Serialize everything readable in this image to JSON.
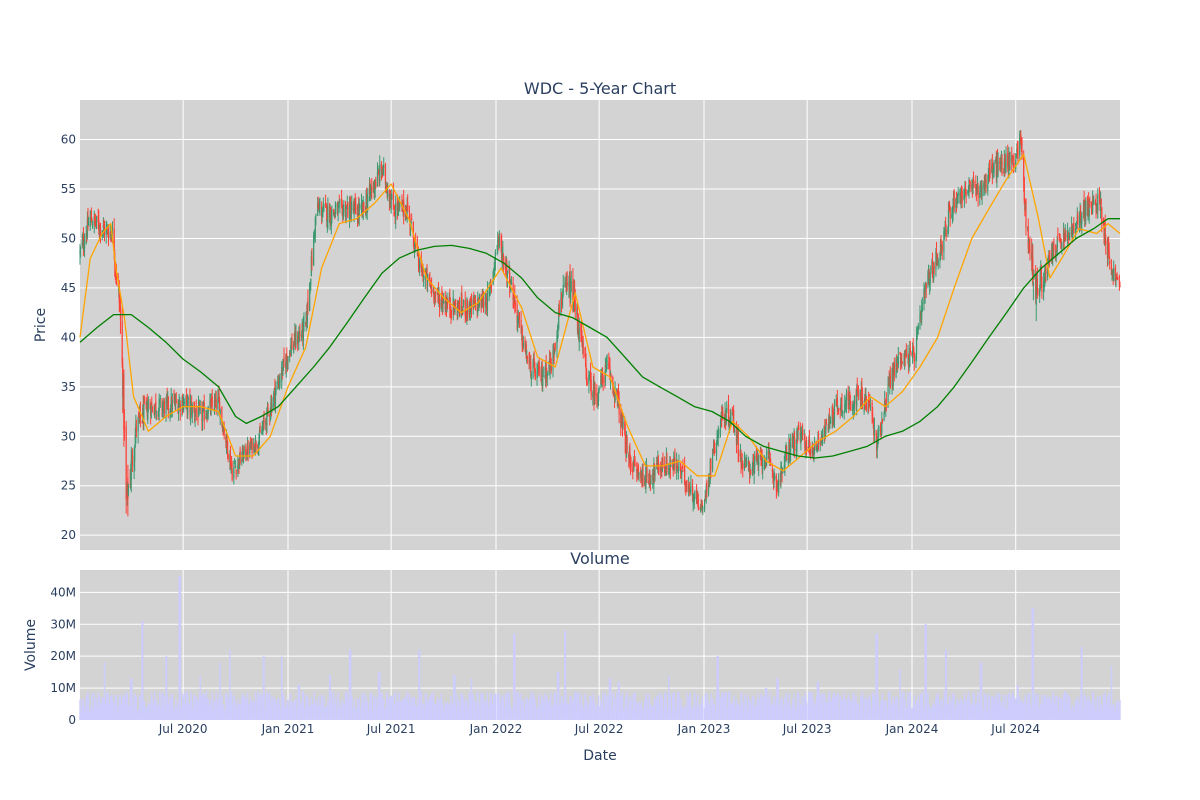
{
  "chart_data": {
    "type": "candlestick",
    "title": "WDC - 5-Year Chart",
    "price_panel": {
      "ylabel": "Price",
      "ylim": [
        18.5,
        64
      ],
      "y_ticks": [
        20,
        25,
        30,
        35,
        40,
        45,
        50,
        55,
        60
      ],
      "grid": true,
      "up_color": "#3d9970",
      "down_color": "#ff4136",
      "ohlc_keypoints": {
        "dates": [
          "2020-01-02",
          "2020-01-20",
          "2020-02-10",
          "2020-02-28",
          "2020-03-12",
          "2020-03-18",
          "2020-03-23",
          "2020-04-10",
          "2020-05-01",
          "2020-06-01",
          "2020-07-01",
          "2020-08-01",
          "2020-09-01",
          "2020-09-25",
          "2020-10-20",
          "2020-11-10",
          "2020-12-01",
          "2021-01-05",
          "2021-02-01",
          "2021-02-20",
          "2021-03-15",
          "2021-04-15",
          "2021-05-10",
          "2021-05-28",
          "2021-06-15",
          "2021-07-05",
          "2021-07-30",
          "2021-08-20",
          "2021-09-20",
          "2021-10-20",
          "2021-11-20",
          "2021-12-20",
          "2022-01-04",
          "2022-01-25",
          "2022-02-15",
          "2022-03-01",
          "2022-03-20",
          "2022-04-10",
          "2022-04-25",
          "2022-05-10",
          "2022-05-20",
          "2022-06-10",
          "2022-06-25",
          "2022-07-15",
          "2022-08-01",
          "2022-08-20",
          "2022-09-10",
          "2022-09-30",
          "2022-10-15",
          "2022-11-15",
          "2022-12-15",
          "2022-12-30",
          "2023-01-15",
          "2023-02-01",
          "2023-02-20",
          "2023-03-10",
          "2023-03-30",
          "2023-04-20",
          "2023-05-10",
          "2023-05-31",
          "2023-06-20",
          "2023-07-10",
          "2023-08-01",
          "2023-08-20",
          "2023-09-10",
          "2023-10-01",
          "2023-10-20",
          "2023-10-31",
          "2023-11-20",
          "2023-12-10",
          "2024-01-05",
          "2024-01-25",
          "2024-02-20",
          "2024-03-15",
          "2024-04-10",
          "2024-05-01",
          "2024-05-20",
          "2024-06-10",
          "2024-06-28",
          "2024-07-10",
          "2024-07-20",
          "2024-08-05",
          "2024-08-20",
          "2024-09-06",
          "2024-09-25",
          "2024-10-15",
          "2024-10-28",
          "2024-11-10",
          "2024-11-25",
          "2024-12-06",
          "2024-12-15",
          "2024-12-24",
          "2024-12-31"
        ],
        "close": [
          48.5,
          52,
          51,
          50.5,
          43,
          34,
          23,
          31,
          33,
          33,
          33.5,
          32,
          33.5,
          26.5,
          28.5,
          29.5,
          33,
          39,
          41,
          53,
          52.5,
          53,
          52.5,
          55,
          57,
          53,
          53,
          47,
          44,
          43,
          43,
          44,
          50,
          46,
          40,
          37,
          36,
          37.5,
          44,
          45,
          43,
          36,
          34,
          37,
          34,
          28,
          26,
          26,
          27,
          27,
          24,
          22.5,
          28,
          32,
          32,
          27,
          27,
          28,
          25,
          29,
          30,
          28.5,
          30.5,
          33,
          33.5,
          34,
          33,
          29,
          35,
          38,
          38,
          45,
          49,
          54,
          55,
          55,
          57,
          57.5,
          58,
          60,
          51,
          45,
          46,
          49,
          50,
          51,
          53,
          53,
          54,
          50,
          47,
          46,
          45
        ],
        "high": [
          51,
          53.5,
          53,
          52,
          46,
          38,
          28,
          34,
          35,
          35,
          35.5,
          34,
          35,
          29,
          30,
          31,
          35,
          41,
          43,
          55,
          54.5,
          55,
          55,
          57,
          59,
          55,
          55,
          49,
          46,
          45,
          45,
          46,
          52.5,
          48,
          42,
          39,
          38,
          40,
          46,
          48,
          47,
          38,
          36,
          39,
          36,
          30,
          28,
          28,
          29,
          29,
          26,
          24.5,
          30,
          34,
          34,
          29,
          29,
          30,
          27,
          31,
          32,
          30,
          32,
          35,
          35.5,
          36,
          35,
          31,
          37,
          40,
          40,
          47,
          51,
          56,
          57,
          57,
          59,
          59.5,
          60,
          61.5,
          53,
          47,
          48,
          51,
          52,
          53,
          55,
          55,
          56,
          52,
          49,
          47.5,
          46.5
        ],
        "low": [
          47,
          49.5,
          49,
          48,
          40,
          31,
          20.5,
          29,
          31,
          31,
          31.5,
          30,
          31.5,
          25,
          27,
          28,
          31,
          37,
          39,
          51,
          50.5,
          51,
          50.5,
          53,
          55,
          51,
          51,
          45,
          42,
          41,
          41,
          42,
          48,
          44,
          38,
          35,
          34,
          36,
          42,
          43,
          41,
          34,
          32,
          35,
          32,
          26,
          24,
          24,
          25,
          25,
          22.5,
          22.5,
          26,
          30,
          30,
          25,
          25,
          26,
          23.5,
          27,
          28,
          27,
          29,
          31,
          31.5,
          32,
          31,
          27,
          33,
          36,
          36,
          43,
          47,
          52,
          53,
          53,
          55,
          55.5,
          56,
          57,
          49,
          40,
          44,
          47,
          48,
          49,
          51,
          51,
          52,
          48,
          45,
          44.5,
          44
        ]
      },
      "moving_averages": [
        {
          "color": "#ffa500",
          "points": [
            [
              "2020-01-02",
              40
            ],
            [
              "2020-01-20",
              48
            ],
            [
              "2020-02-10",
              50.5
            ],
            [
              "2020-02-25",
              51.5
            ],
            [
              "2020-03-05",
              47
            ],
            [
              "2020-03-20",
              42
            ],
            [
              "2020-04-05",
              34
            ],
            [
              "2020-05-01",
              30.5
            ],
            [
              "2020-06-01",
              32
            ],
            [
              "2020-07-01",
              33
            ],
            [
              "2020-08-01",
              33
            ],
            [
              "2020-09-01",
              32.5
            ],
            [
              "2020-10-01",
              28
            ],
            [
              "2020-11-01",
              28
            ],
            [
              "2020-12-01",
              30
            ],
            [
              "2021-01-01",
              35
            ],
            [
              "2021-02-01",
              39
            ],
            [
              "2021-03-01",
              47
            ],
            [
              "2021-04-01",
              51.5
            ],
            [
              "2021-05-01",
              52
            ],
            [
              "2021-06-01",
              53.5
            ],
            [
              "2021-07-01",
              55.5
            ],
            [
              "2021-08-01",
              52
            ],
            [
              "2021-09-01",
              46
            ],
            [
              "2021-10-01",
              44
            ],
            [
              "2021-11-01",
              42.5
            ],
            [
              "2021-12-01",
              43.5
            ],
            [
              "2022-01-10",
              47
            ],
            [
              "2022-02-15",
              43
            ],
            [
              "2022-03-15",
              38
            ],
            [
              "2022-04-15",
              37
            ],
            [
              "2022-05-20",
              44.5
            ],
            [
              "2022-06-20",
              37
            ],
            [
              "2022-07-20",
              36
            ],
            [
              "2022-08-20",
              31
            ],
            [
              "2022-09-20",
              27
            ],
            [
              "2022-10-20",
              27
            ],
            [
              "2022-11-20",
              27.5
            ],
            [
              "2022-12-20",
              26
            ],
            [
              "2023-01-20",
              26
            ],
            [
              "2023-02-20",
              31.5
            ],
            [
              "2023-03-20",
              30
            ],
            [
              "2023-04-20",
              27.5
            ],
            [
              "2023-05-20",
              26.5
            ],
            [
              "2023-06-20",
              28
            ],
            [
              "2023-07-20",
              29.5
            ],
            [
              "2023-08-20",
              30.5
            ],
            [
              "2023-09-20",
              32
            ],
            [
              "2023-10-20",
              34
            ],
            [
              "2023-11-15",
              33
            ],
            [
              "2023-12-15",
              34.5
            ],
            [
              "2024-01-15",
              37
            ],
            [
              "2024-02-15",
              40
            ],
            [
              "2024-03-15",
              45
            ],
            [
              "2024-04-15",
              50
            ],
            [
              "2024-05-15",
              53
            ],
            [
              "2024-06-15",
              56
            ],
            [
              "2024-07-15",
              58.5
            ],
            [
              "2024-08-10",
              52
            ],
            [
              "2024-08-30",
              46
            ],
            [
              "2024-09-20",
              48
            ],
            [
              "2024-10-20",
              51
            ],
            [
              "2024-11-20",
              50.5
            ],
            [
              "2024-12-10",
              51.5
            ],
            [
              "2024-12-31",
              50.5
            ]
          ]
        },
        {
          "color": "#008000",
          "points": [
            [
              "2020-01-02",
              39.5
            ],
            [
              "2020-02-01",
              41
            ],
            [
              "2020-03-01",
              42.3
            ],
            [
              "2020-04-01",
              42.3
            ],
            [
              "2020-05-01",
              41
            ],
            [
              "2020-06-01",
              39.5
            ],
            [
              "2020-07-01",
              37.8
            ],
            [
              "2020-08-01",
              36.5
            ],
            [
              "2020-09-01",
              35
            ],
            [
              "2020-10-01",
              32
            ],
            [
              "2020-10-20",
              31.3
            ],
            [
              "2020-11-15",
              32
            ],
            [
              "2020-12-15",
              33
            ],
            [
              "2021-01-15",
              35
            ],
            [
              "2021-02-15",
              37
            ],
            [
              "2021-03-15",
              39
            ],
            [
              "2021-04-15",
              41.5
            ],
            [
              "2021-05-15",
              44
            ],
            [
              "2021-06-15",
              46.5
            ],
            [
              "2021-07-15",
              48
            ],
            [
              "2021-08-15",
              48.8
            ],
            [
              "2021-09-15",
              49.2
            ],
            [
              "2021-10-15",
              49.3
            ],
            [
              "2021-11-15",
              49
            ],
            [
              "2021-12-15",
              48.5
            ],
            [
              "2022-01-15",
              47.5
            ],
            [
              "2022-02-15",
              46
            ],
            [
              "2022-03-15",
              44
            ],
            [
              "2022-04-15",
              42.5
            ],
            [
              "2022-05-15",
              42
            ],
            [
              "2022-06-15",
              41
            ],
            [
              "2022-07-15",
              40
            ],
            [
              "2022-08-15",
              38
            ],
            [
              "2022-09-15",
              36
            ],
            [
              "2022-10-15",
              35
            ],
            [
              "2022-11-15",
              34
            ],
            [
              "2022-12-15",
              33
            ],
            [
              "2023-01-15",
              32.5
            ],
            [
              "2023-02-15",
              31.5
            ],
            [
              "2023-03-15",
              30
            ],
            [
              "2023-04-15",
              29
            ],
            [
              "2023-05-15",
              28.5
            ],
            [
              "2023-06-15",
              28
            ],
            [
              "2023-07-15",
              27.8
            ],
            [
              "2023-08-15",
              28
            ],
            [
              "2023-09-15",
              28.5
            ],
            [
              "2023-10-15",
              29
            ],
            [
              "2023-11-15",
              30
            ],
            [
              "2023-12-15",
              30.5
            ],
            [
              "2024-01-15",
              31.5
            ],
            [
              "2024-02-15",
              33
            ],
            [
              "2024-03-15",
              35
            ],
            [
              "2024-04-15",
              37.5
            ],
            [
              "2024-05-15",
              40
            ],
            [
              "2024-06-15",
              42.5
            ],
            [
              "2024-07-15",
              45
            ],
            [
              "2024-08-15",
              47
            ],
            [
              "2024-09-15",
              48.5
            ],
            [
              "2024-10-15",
              50
            ],
            [
              "2024-11-15",
              51
            ],
            [
              "2024-12-10",
              52
            ],
            [
              "2024-12-31",
              52
            ]
          ]
        }
      ]
    },
    "volume_panel": {
      "title": "Volume",
      "ylabel": "Volume",
      "ylim": [
        0,
        47000000
      ],
      "y_ticks": [
        0,
        10000000,
        20000000,
        30000000,
        40000000
      ],
      "y_tick_labels": [
        "0",
        "10M",
        "20M",
        "30M",
        "40M"
      ],
      "bar_color": "#ccccff",
      "base_level": 6000000,
      "spikes": [
        [
          "2020-02-15",
          18000000
        ],
        [
          "2020-04-01",
          13000000
        ],
        [
          "2020-04-20",
          31000000
        ],
        [
          "2020-06-01",
          20000000
        ],
        [
          "2020-06-25",
          45000000
        ],
        [
          "2020-08-01",
          14000000
        ],
        [
          "2020-09-05",
          18000000
        ],
        [
          "2020-09-20",
          22000000
        ],
        [
          "2020-11-20",
          20000000
        ],
        [
          "2020-12-20",
          20000000
        ],
        [
          "2021-01-20",
          11000000
        ],
        [
          "2021-03-15",
          14000000
        ],
        [
          "2021-04-20",
          22000000
        ],
        [
          "2021-06-10",
          15000000
        ],
        [
          "2021-08-20",
          22000000
        ],
        [
          "2021-10-20",
          14000000
        ],
        [
          "2021-11-20",
          13000000
        ],
        [
          "2022-02-02",
          27000000
        ],
        [
          "2022-04-20",
          15000000
        ],
        [
          "2022-05-02",
          28000000
        ],
        [
          "2022-07-20",
          13000000
        ],
        [
          "2022-08-05",
          12000000
        ],
        [
          "2022-10-30",
          14000000
        ],
        [
          "2023-01-25",
          20000000
        ],
        [
          "2023-04-20",
          10000000
        ],
        [
          "2023-05-10",
          13000000
        ],
        [
          "2023-07-20",
          12000000
        ],
        [
          "2023-10-31",
          27000000
        ],
        [
          "2023-12-10",
          16000000
        ],
        [
          "2024-01-25",
          30000000
        ],
        [
          "2024-03-01",
          22000000
        ],
        [
          "2024-05-01",
          18000000
        ],
        [
          "2024-07-05",
          11000000
        ],
        [
          "2024-07-31",
          35000000
        ],
        [
          "2024-10-25",
          23000000
        ],
        [
          "2024-12-15",
          17000000
        ]
      ]
    },
    "x_axis": {
      "xlabel": "Date",
      "range": [
        "2020-01-02",
        "2024-12-31"
      ],
      "ticks": [
        "2020-07-01",
        "2021-01-01",
        "2021-07-01",
        "2022-01-01",
        "2022-07-01",
        "2023-01-01",
        "2023-07-01",
        "2024-01-01",
        "2024-07-01"
      ],
      "tick_labels": [
        "Jul 2020",
        "Jan 2021",
        "Jul 2021",
        "Jan 2022",
        "Jul 2022",
        "Jan 2023",
        "Jul 2023",
        "Jan 2024",
        "Jul 2024"
      ]
    },
    "colors": {
      "plot_background": "#d3d3d3",
      "grid": "#ffffff",
      "text": "#2a3f5f"
    }
  }
}
